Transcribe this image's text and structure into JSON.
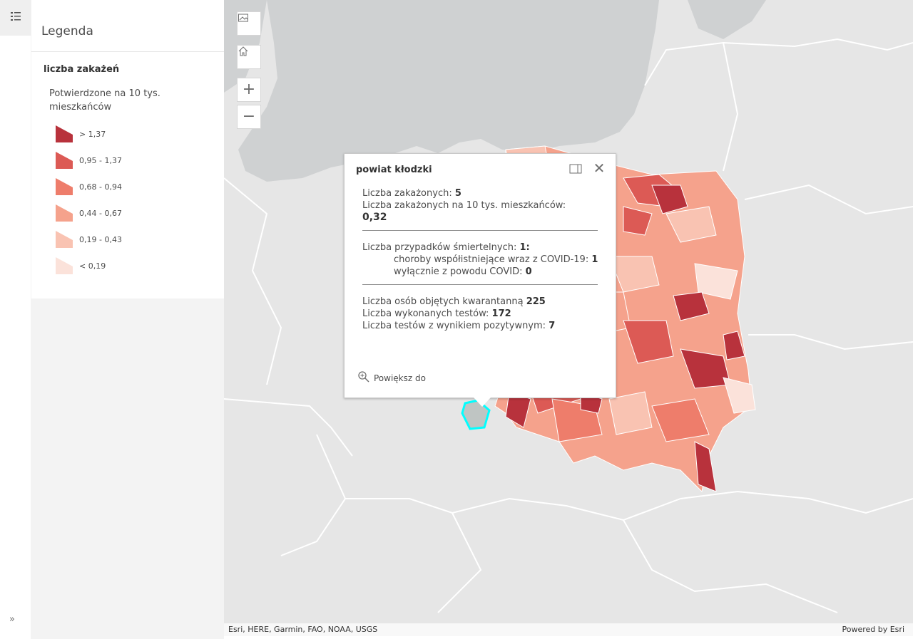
{
  "sidebar": {
    "legend_toggle_icon": "legend-list-icon",
    "expand_icon": "double-chevron-right-icon",
    "expand_label": "»"
  },
  "legend": {
    "title": "Legenda",
    "layer_title": "liczba zakażeń",
    "field_title": "Potwierdzone na 10 tys. mieszkańców",
    "classes": [
      {
        "label": "> 1,37",
        "color": "#b8323c"
      },
      {
        "label": "0,95 - 1,37",
        "color": "#dc5a55"
      },
      {
        "label": "0,68 - 0,94",
        "color": "#ee7d6b"
      },
      {
        "label": "0,44 - 0,67",
        "color": "#f5a28c"
      },
      {
        "label": "0,19 - 0,43",
        "color": "#f9c3b2"
      },
      {
        "label": "< 0,19",
        "color": "#fbe2da"
      }
    ]
  },
  "map": {
    "controls": [
      {
        "name": "basemap-gallery-button",
        "icon": "basemap-icon"
      },
      {
        "name": "home-button",
        "icon": "home-icon"
      },
      {
        "name": "zoom-in-button",
        "icon": "plus-icon",
        "label": "+"
      },
      {
        "name": "zoom-out-button",
        "icon": "minus-icon",
        "label": "−"
      }
    ],
    "attribution": "Esri, HERE, Garmin, FAO, NOAA, USGS",
    "powered_by": "Powered by Esri",
    "colors": {
      "water": "#cfd1d2",
      "land": "#e6e6e6",
      "border": "#ffffff",
      "selection": "#00ffff",
      "selected_fill": "#bfc5c3"
    }
  },
  "popup": {
    "title": "powiat kłodzki",
    "dock_icon": "dock-icon",
    "close_icon": "close-icon",
    "close_label": "✕",
    "lines": {
      "cases_label": "Liczba zakażonych: ",
      "cases_value": "5",
      "cases_per_label": "Liczba zakażonych na 10 tys. mieszkańców:",
      "cases_per_value": "0,32",
      "deaths_label": "Liczba przypadków śmiertelnych: ",
      "deaths_value": "1:",
      "comorbid_label": "choroby współistniejące wraz z COVID-19: ",
      "comorbid_value": "1",
      "covid_only_label": "wyłącznie z powodu COVID: ",
      "covid_only_value": "0",
      "quarantine_label": "Liczba osób objętych kwarantanną ",
      "quarantine_value": "225",
      "tests_label": "Liczba wykonanych testów: ",
      "tests_value": "172",
      "positive_label": "Liczba testów z wynikiem pozytywnym: ",
      "positive_value": "7"
    },
    "zoom_to_label": "Powiększ do",
    "zoom_icon": "zoom-magnifier-icon"
  }
}
